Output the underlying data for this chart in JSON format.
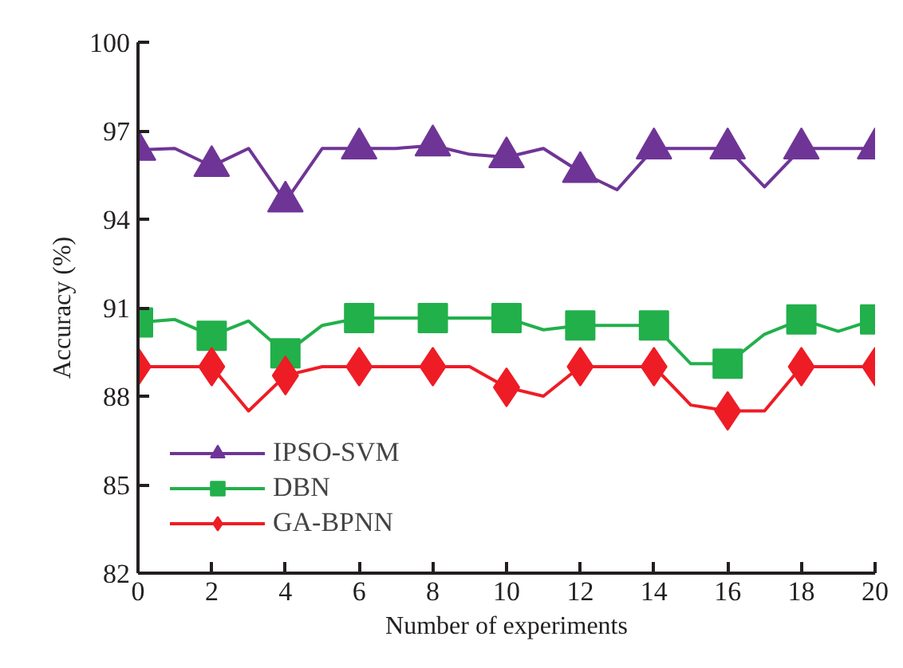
{
  "chart_data": {
    "type": "line",
    "xlabel": "Number of experiments",
    "ylabel": "Accuracy (%)",
    "x": [
      0,
      1,
      2,
      3,
      4,
      5,
      6,
      7,
      8,
      9,
      10,
      11,
      12,
      13,
      14,
      15,
      16,
      17,
      18,
      19,
      20
    ],
    "xlim": [
      0,
      20
    ],
    "xticks": [
      0,
      2,
      4,
      6,
      8,
      10,
      12,
      14,
      16,
      18,
      20
    ],
    "ylim": [
      82,
      100
    ],
    "yticks": [
      82,
      85,
      88,
      91,
      94,
      97,
      100
    ],
    "grid": false,
    "legend": "bottom left",
    "line_style": "solid",
    "series": [
      {
        "name": "IPSO-SVM",
        "color": "#6f3596",
        "marker": "triangle",
        "values": [
          96.35,
          96.4,
          95.8,
          96.4,
          94.6,
          96.4,
          96.4,
          96.4,
          96.5,
          96.2,
          96.1,
          96.4,
          95.6,
          95.0,
          96.4,
          96.4,
          96.4,
          95.1,
          96.4,
          96.4,
          96.4
        ]
      },
      {
        "name": "DBN",
        "color": "#22b04b",
        "marker": "square",
        "values": [
          90.5,
          90.6,
          90.05,
          90.55,
          89.45,
          90.4,
          90.65,
          90.65,
          90.65,
          90.65,
          90.65,
          90.25,
          90.4,
          90.4,
          90.4,
          89.1,
          89.1,
          90.1,
          90.6,
          90.2,
          90.6
        ]
      },
      {
        "name": "GA-BPNN",
        "color": "#ee1c25",
        "marker": "diamond",
        "values": [
          89.0,
          89.0,
          89.0,
          87.5,
          88.7,
          89.0,
          89.0,
          89.0,
          89.0,
          89.0,
          88.3,
          88.0,
          89.0,
          89.0,
          89.0,
          87.7,
          87.5,
          87.5,
          89.0,
          89.0,
          89.0
        ]
      }
    ]
  }
}
